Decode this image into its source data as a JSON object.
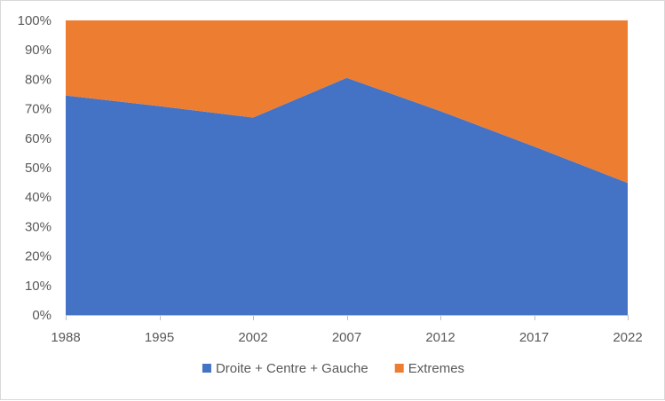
{
  "chart_data": {
    "type": "area",
    "stacked": "percent",
    "title": "",
    "xlabel": "",
    "ylabel": "",
    "x": [
      "1988",
      "1995",
      "2002",
      "2007",
      "2012",
      "2017",
      "2022"
    ],
    "x_numeric": [
      1988,
      1995,
      2002,
      2007,
      2012,
      2017,
      2022
    ],
    "ylim": [
      0,
      100
    ],
    "y_ticks": [
      "0%",
      "10%",
      "20%",
      "30%",
      "40%",
      "50%",
      "60%",
      "70%",
      "80%",
      "90%",
      "100%"
    ],
    "series": [
      {
        "name": "Droite + Centre + Gauche",
        "color": "#4472c4",
        "values": [
          74.5,
          70.9,
          67,
          80.5,
          69.2,
          57.2,
          44.8
        ]
      },
      {
        "name": "Extremes",
        "color": "#ed7d31",
        "values": [
          25.5,
          29.1,
          33,
          19.5,
          30.8,
          42.8,
          55.2
        ]
      }
    ],
    "legend_position": "bottom",
    "grid": false
  }
}
